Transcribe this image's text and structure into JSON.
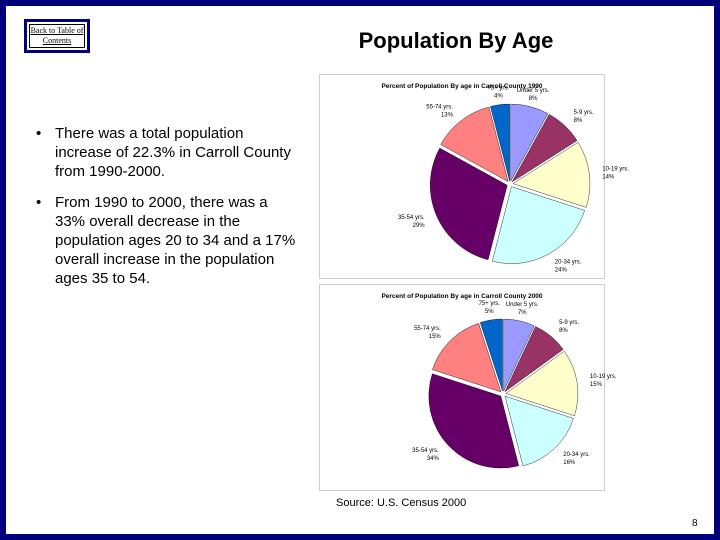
{
  "slide": {
    "back_link": "Back to Table of Contents",
    "title": "Population By Age",
    "bullets": [
      "There was a total population increase of 22.3% in Carroll County from 1990-2000.",
      "From 1990 to 2000, there was a 33% overall decrease in the population ages 20 to 34 and a 17% overall increase in the population ages 35 to 54."
    ],
    "bullet_symbol": "•",
    "source": "Source: U.S. Census 2000",
    "page_number": "8"
  },
  "chart_data": [
    {
      "type": "pie",
      "title": "Percent of Population By age in Carroll County 1990",
      "slices": [
        {
          "label": "Under 5 yrs.",
          "pct_label": "8%",
          "value": 8,
          "color": "#9999ff"
        },
        {
          "label": "5-9 yrs.",
          "pct_label": "8%",
          "value": 8,
          "color": "#993366"
        },
        {
          "label": "10-19 yrs.",
          "pct_label": "14%",
          "value": 14,
          "color": "#ffffcc"
        },
        {
          "label": "20-34 yrs.",
          "pct_label": "24%",
          "value": 24,
          "color": "#ccffff"
        },
        {
          "label": "35-54 yrs.",
          "pct_label": "29%",
          "value": 29,
          "color": "#660066"
        },
        {
          "label": "55-74 yrs.",
          "pct_label": "13%",
          "value": 13,
          "color": "#ff8080"
        },
        {
          "label": "75+ yrs.",
          "pct_label": "4%",
          "value": 4,
          "color": "#0066cc"
        }
      ]
    },
    {
      "type": "pie",
      "title": "Percent of Population By age in Carroll County 2000",
      "slices": [
        {
          "label": "Under 5 yrs.",
          "pct_label": "7%",
          "value": 7,
          "color": "#9999ff"
        },
        {
          "label": "5-9 yrs.",
          "pct_label": "8%",
          "value": 8,
          "color": "#993366"
        },
        {
          "label": "10-19 yrs.",
          "pct_label": "15%",
          "value": 15,
          "color": "#ffffcc"
        },
        {
          "label": "20-34 yrs.",
          "pct_label": "16%",
          "value": 16,
          "color": "#ccffff"
        },
        {
          "label": "35-54 yrs.",
          "pct_label": "34%",
          "value": 34,
          "color": "#660066"
        },
        {
          "label": "55-74 yrs.",
          "pct_label": "15%",
          "value": 15,
          "color": "#ff8080"
        },
        {
          "label": "75+ yrs.",
          "pct_label": "5%",
          "value": 5,
          "color": "#0066cc"
        }
      ]
    }
  ]
}
